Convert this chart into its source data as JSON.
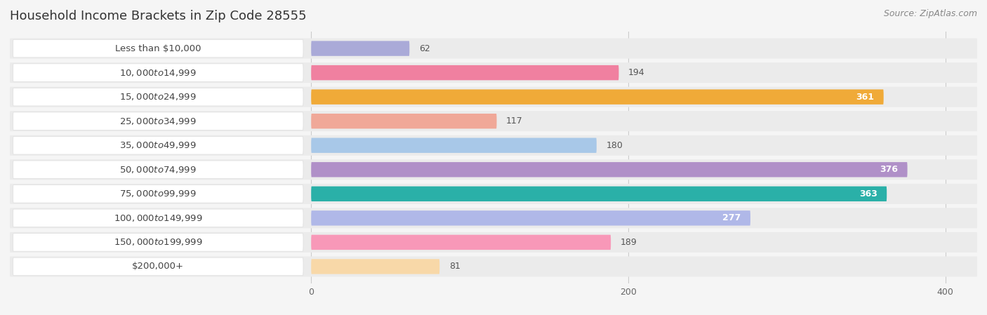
{
  "title": "Household Income Brackets in Zip Code 28555",
  "source_text": "Source: ZipAtlas.com",
  "categories": [
    "Less than $10,000",
    "$10,000 to $14,999",
    "$15,000 to $24,999",
    "$25,000 to $34,999",
    "$35,000 to $49,999",
    "$50,000 to $74,999",
    "$75,000 to $99,999",
    "$100,000 to $149,999",
    "$150,000 to $199,999",
    "$200,000+"
  ],
  "values": [
    62,
    194,
    361,
    117,
    180,
    376,
    363,
    277,
    189,
    81
  ],
  "bar_colors": [
    "#aaaad8",
    "#f080a0",
    "#f0aa38",
    "#f0a898",
    "#a8c8e8",
    "#b090c8",
    "#2ab0a8",
    "#b0b8e8",
    "#f898b8",
    "#f8d8a8"
  ],
  "label_colors": [
    "#555555",
    "#555555",
    "#ffffff",
    "#555555",
    "#555555",
    "#ffffff",
    "#ffffff",
    "#ffffff",
    "#555555",
    "#555555"
  ],
  "xlim_left": -190,
  "xlim_right": 420,
  "data_xstart": 0,
  "bg_color": "#f5f5f5",
  "row_bg_color": "#ebebeb",
  "label_box_color": "#ffffff",
  "title_fontsize": 13,
  "label_fontsize": 9.5,
  "value_fontsize": 9,
  "tick_fontsize": 9,
  "source_fontsize": 9,
  "bar_height": 0.6
}
